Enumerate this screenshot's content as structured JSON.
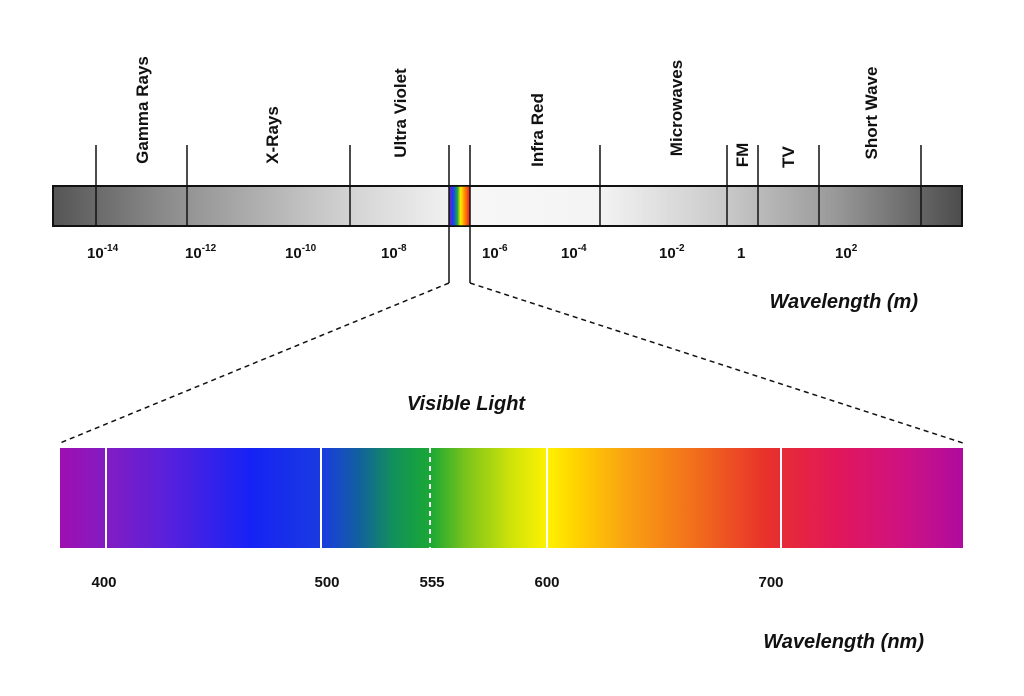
{
  "spectrum": {
    "bands": [
      {
        "id": "gamma",
        "label": "Gamma Rays"
      },
      {
        "id": "xray",
        "label": "X-Rays"
      },
      {
        "id": "uv",
        "label": "Ultra Violet"
      },
      {
        "id": "ir",
        "label": "Infra Red"
      },
      {
        "id": "micro",
        "label": "Microwaves"
      },
      {
        "id": "fm",
        "label": "FM"
      },
      {
        "id": "tv",
        "label": "TV"
      },
      {
        "id": "sw",
        "label": "Short Wave"
      }
    ],
    "ticks": [
      {
        "id": "e-14",
        "base": "10",
        "exp": "-14"
      },
      {
        "id": "e-12",
        "base": "10",
        "exp": "-12"
      },
      {
        "id": "e-10",
        "base": "10",
        "exp": "-10"
      },
      {
        "id": "e-8",
        "base": "10",
        "exp": "-8"
      },
      {
        "id": "e-6",
        "base": "10",
        "exp": "-6"
      },
      {
        "id": "e-4",
        "base": "10",
        "exp": "-4"
      },
      {
        "id": "e-2",
        "base": "10",
        "exp": "-2"
      },
      {
        "id": "one",
        "base": "1",
        "exp": ""
      },
      {
        "id": "e2",
        "base": "10",
        "exp": "2"
      }
    ],
    "axis_title": "Wavelength (m)"
  },
  "visible": {
    "title": "Visible Light",
    "ticks": [
      {
        "id": "400",
        "label": "400"
      },
      {
        "id": "500",
        "label": "500"
      },
      {
        "id": "555",
        "label": "555"
      },
      {
        "id": "600",
        "label": "600"
      },
      {
        "id": "700",
        "label": "700"
      }
    ],
    "axis_title": "Wavelength (nm)"
  }
}
